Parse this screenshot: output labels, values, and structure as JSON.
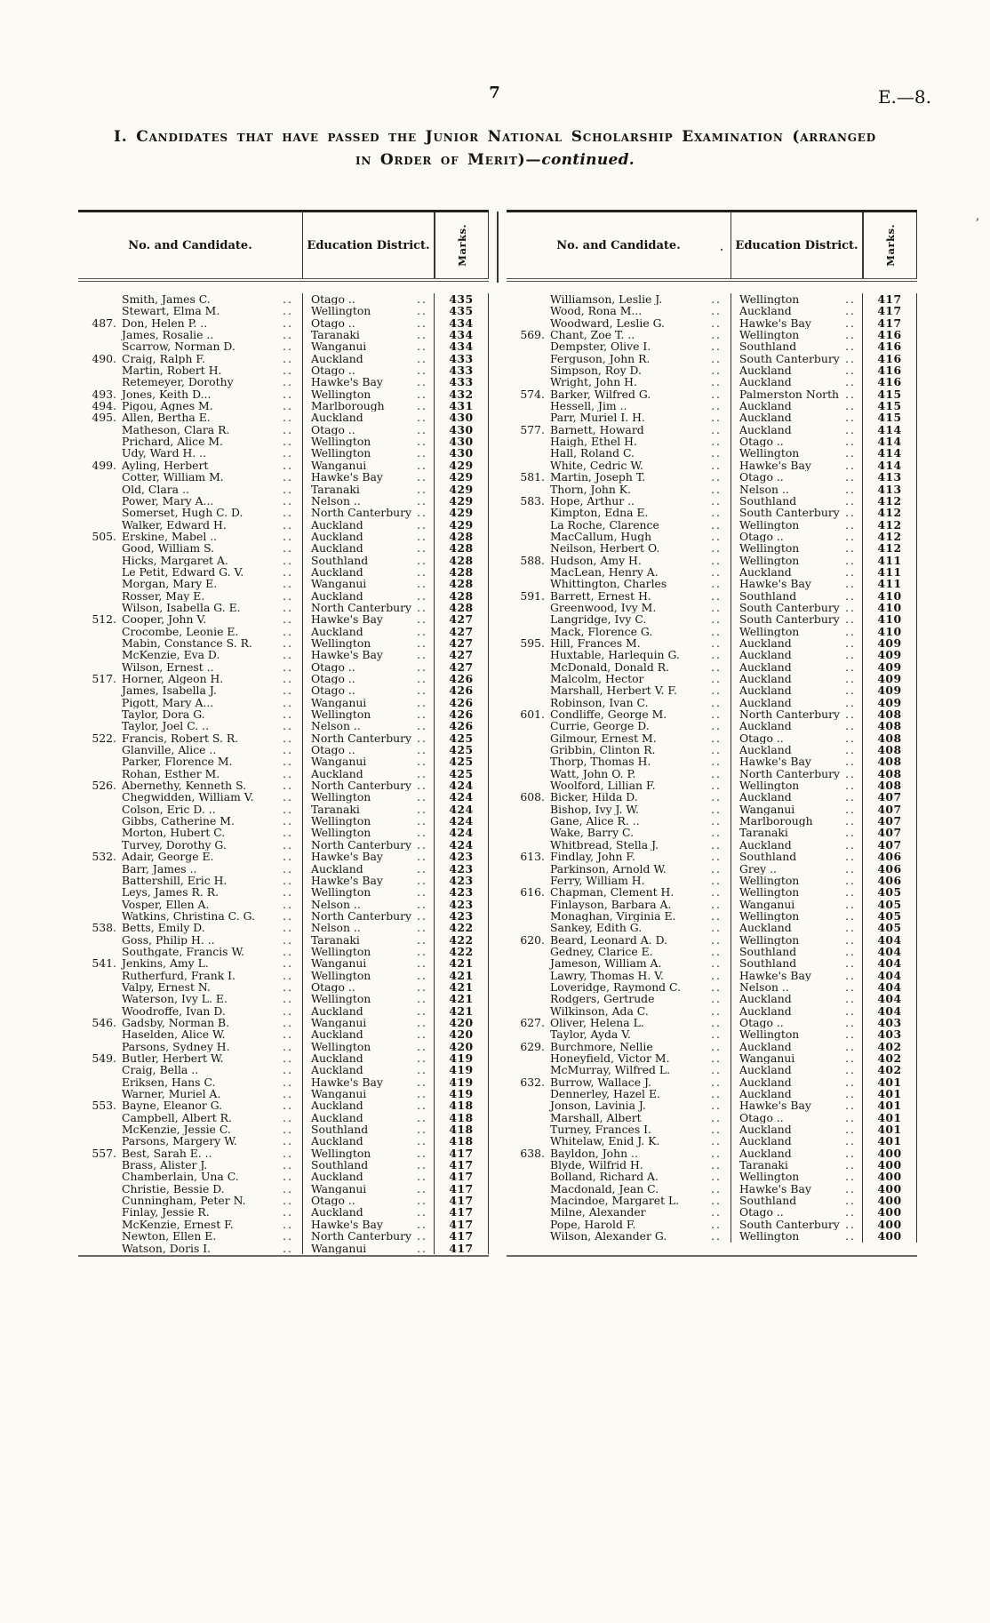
{
  "page": {
    "number": "7",
    "reference": "E.—8.",
    "noise_mark": "’"
  },
  "title": {
    "line1": "I. Candidates that have passed the Junior National Scholarship Examination (arranged",
    "line2_smallcaps": "in Order of Merit)—",
    "line2_italic": "continued."
  },
  "table": {
    "leader": "..",
    "stray_dot": ".",
    "headers": {
      "candidate": "No. and Candidate.",
      "district": "Education District.",
      "marks": "Marks."
    },
    "left_rows": [
      [
        "",
        "Smith, James C.",
        "Otago ..",
        "435"
      ],
      [
        "",
        "Stewart, Elma M.",
        "Wellington",
        "435"
      ],
      [
        "487.",
        "Don, Helen P. ..",
        "Otago ..",
        "434"
      ],
      [
        "",
        "James, Rosalie ..",
        "Taranaki",
        "434"
      ],
      [
        "",
        "Scarrow, Norman D.",
        "Wanganui",
        "434"
      ],
      [
        "490.",
        "Craig, Ralph F.",
        "Auckland",
        "433"
      ],
      [
        "",
        "Martin, Robert H.",
        "Otago ..",
        "433"
      ],
      [
        "",
        "Retemeyer, Dorothy",
        "Hawke's Bay",
        "433"
      ],
      [
        "493.",
        "Jones, Keith D...",
        "Wellington",
        "432"
      ],
      [
        "494.",
        "Pigou, Agnes M.",
        "Marlborough",
        "431"
      ],
      [
        "495.",
        "Allen, Bertha E.",
        "Auckland",
        "430"
      ],
      [
        "",
        "Matheson, Clara R.",
        "Otago ..",
        "430"
      ],
      [
        "",
        "Prichard, Alice M.",
        "Wellington",
        "430"
      ],
      [
        "",
        "Udy, Ward H. ..",
        "Wellington",
        "430"
      ],
      [
        "499.",
        "Ayling, Herbert",
        "Wanganui",
        "429"
      ],
      [
        "",
        "Cotter, William M.",
        "Hawke's Bay",
        "429"
      ],
      [
        "",
        "Old, Clara ..",
        "Taranaki",
        "429"
      ],
      [
        "",
        "Power, Mary A...",
        "Nelson ..",
        "429"
      ],
      [
        "",
        "Somerset, Hugh C. D.",
        "North Canterbury",
        "429"
      ],
      [
        "",
        "Walker, Edward H.",
        "Auckland",
        "429"
      ],
      [
        "505.",
        "Erskine, Mabel ..",
        "Auckland",
        "428"
      ],
      [
        "",
        "Good, William S.",
        "Auckland",
        "428"
      ],
      [
        "",
        "Hicks, Margaret A.",
        "Southland",
        "428"
      ],
      [
        "",
        "Le Petit, Edward G. V.",
        "Auckland",
        "428"
      ],
      [
        "",
        "Morgan, Mary E.",
        "Wanganui",
        "428"
      ],
      [
        "",
        "Rosser, May E.",
        "Auckland",
        "428"
      ],
      [
        "",
        "Wilson, Isabella G. E.",
        "North Canterbury",
        "428"
      ],
      [
        "512.",
        "Cooper, John V.",
        "Hawke's Bay",
        "427"
      ],
      [
        "",
        "Crocombe, Leonie E.",
        "Auckland",
        "427"
      ],
      [
        "",
        "Mabin, Constance S. R.",
        "Wellington",
        "427"
      ],
      [
        "",
        "McKenzie, Eva D.",
        "Hawke's Bay",
        "427"
      ],
      [
        "",
        "Wilson, Ernest ..",
        "Otago ..",
        "427"
      ],
      [
        "517.",
        "Horner, Algeon H.",
        "Otago ..",
        "426"
      ],
      [
        "",
        "James, Isabella J.",
        "Otago ..",
        "426"
      ],
      [
        "",
        "Pigott, Mary A...",
        "Wanganui",
        "426"
      ],
      [
        "",
        "Taylor, Dora G.",
        "Wellington",
        "426"
      ],
      [
        "",
        "Taylor, Joel C. ..",
        "Nelson ..",
        "426"
      ],
      [
        "522.",
        "Francis, Robert S. R.",
        "North Canterbury",
        "425"
      ],
      [
        "",
        "Glanville, Alice ..",
        "Otago ..",
        "425"
      ],
      [
        "",
        "Parker, Florence M.",
        "Wanganui",
        "425"
      ],
      [
        "",
        "Rohan, Esther M.",
        "Auckland",
        "425"
      ],
      [
        "526.",
        "Abernethy, Kenneth S.",
        "North Canterbury",
        "424"
      ],
      [
        "",
        "Chegwidden, William V.",
        "Wellington",
        "424"
      ],
      [
        "",
        "Colson, Eric D. ..",
        "Taranaki",
        "424"
      ],
      [
        "",
        "Gibbs, Catherine M.",
        "Wellington",
        "424"
      ],
      [
        "",
        "Morton, Hubert C.",
        "Wellington",
        "424"
      ],
      [
        "",
        "Turvey, Dorothy G.",
        "North Canterbury",
        "424"
      ],
      [
        "532.",
        "Adair, George E.",
        "Hawke's Bay",
        "423"
      ],
      [
        "",
        "Barr, James ..",
        "Auckland",
        "423"
      ],
      [
        "",
        "Battershill, Eric H.",
        "Hawke's Bay",
        "423"
      ],
      [
        "",
        "Leys, James R. R.",
        "Wellington",
        "423"
      ],
      [
        "",
        "Vosper, Ellen A.",
        "Nelson ..",
        "423"
      ],
      [
        "",
        "Watkins, Christina C. G.",
        "North Canterbury",
        "423"
      ],
      [
        "538.",
        "Betts, Emily D.",
        "Nelson ..",
        "422"
      ],
      [
        "",
        "Goss, Philip H. ..",
        "Taranaki",
        "422"
      ],
      [
        "",
        "Southgate, Francis W.",
        "Wellington",
        "422"
      ],
      [
        "541.",
        "Jenkins, Amy L.",
        "Wanganui",
        "421"
      ],
      [
        "",
        "Rutherfurd, Frank I.",
        "Wellington",
        "421"
      ],
      [
        "",
        "Valpy, Ernest N.",
        "Otago ..",
        "421"
      ],
      [
        "",
        "Waterson, Ivy L. E.",
        "Wellington",
        "421"
      ],
      [
        "",
        "Woodroffe, Ivan D.",
        "Auckland",
        "421"
      ],
      [
        "546.",
        "Gadsby, Norman B.",
        "Wanganui",
        "420"
      ],
      [
        "",
        "Haselden, Alice W.",
        "Auckland",
        "420"
      ],
      [
        "",
        "Parsons, Sydney H.",
        "Wellington",
        "420"
      ],
      [
        "549.",
        "Butler, Herbert W.",
        "Auckland",
        "419"
      ],
      [
        "",
        "Craig, Bella ..",
        "Auckland",
        "419"
      ],
      [
        "",
        "Eriksen, Hans C.",
        "Hawke's Bay",
        "419"
      ],
      [
        "",
        "Warner, Muriel A.",
        "Wanganui",
        "419"
      ],
      [
        "553.",
        "Bayne, Eleanor G.",
        "Auckland",
        "418"
      ],
      [
        "",
        "Campbell, Albert R.",
        "Auckland",
        "418"
      ],
      [
        "",
        "McKenzie, Jessie C.",
        "Southland",
        "418"
      ],
      [
        "",
        "Parsons, Margery W.",
        "Auckland",
        "418"
      ],
      [
        "557.",
        "Best, Sarah E. ..",
        "Wellington",
        "417"
      ],
      [
        "",
        "Brass, Alister J.",
        "Southland",
        "417"
      ],
      [
        "",
        "Chamberlain, Una C.",
        "Auckland",
        "417"
      ],
      [
        "",
        "Christie, Bessie D.",
        "Wanganui",
        "417"
      ],
      [
        "",
        "Cunningham, Peter N.",
        "Otago ..",
        "417"
      ],
      [
        "",
        "Finlay, Jessie R.",
        "Auckland",
        "417"
      ],
      [
        "",
        "McKenzie, Ernest F.",
        "Hawke's Bay",
        "417"
      ],
      [
        "",
        "Newton, Ellen E.",
        "North Canterbury",
        "417"
      ],
      [
        "",
        "Watson, Doris I.",
        "Wanganui",
        "417"
      ]
    ],
    "right_rows": [
      [
        "",
        "Williamson, Leslie J.",
        "Wellington",
        "417"
      ],
      [
        "",
        "Wood, Rona M...",
        "Auckland",
        "417"
      ],
      [
        "",
        "Woodward, Leslie G.",
        "Hawke's Bay",
        "417"
      ],
      [
        "569.",
        "Chant, Zoe T. ..",
        "Wellington",
        "416"
      ],
      [
        "",
        "Dempster, Olive I.",
        "Southland",
        "416"
      ],
      [
        "",
        "Ferguson, John R.",
        "South Canterbury",
        "416"
      ],
      [
        "",
        "Simpson, Roy D.",
        "Auckland",
        "416"
      ],
      [
        "",
        "Wright, John H.",
        "Auckland",
        "416"
      ],
      [
        "574.",
        "Barker, Wilfred G.",
        "Palmerston North",
        "415"
      ],
      [
        "",
        "Hessell, Jim ..",
        "Auckland",
        "415"
      ],
      [
        "",
        "Parr, Muriel I. H.",
        "Auckland",
        "415"
      ],
      [
        "577.",
        "Barnett, Howard",
        "Auckland",
        "414"
      ],
      [
        "",
        "Haigh, Ethel H.",
        "Otago ..",
        "414"
      ],
      [
        "",
        "Hall, Roland C.",
        "Wellington",
        "414"
      ],
      [
        "",
        "White, Cedric W.",
        "Hawke's Bay",
        "414"
      ],
      [
        "581.",
        "Martin, Joseph T.",
        "Otago ..",
        "413"
      ],
      [
        "",
        "Thorn, John K.",
        "Nelson ..",
        "413"
      ],
      [
        "583.",
        "Hope, Arthur ..",
        "Southland",
        "412"
      ],
      [
        "",
        "Kimpton, Edna E.",
        "South Canterbury",
        "412"
      ],
      [
        "",
        "La Roche, Clarence",
        "Wellington",
        "412"
      ],
      [
        "",
        "MacCallum, Hugh",
        "Otago ..",
        "412"
      ],
      [
        "",
        "Neilson, Herbert O.",
        "Wellington",
        "412"
      ],
      [
        "588.",
        "Hudson, Amy H.",
        "Wellington",
        "411"
      ],
      [
        "",
        "MacLean, Henry A.",
        "Auckland",
        "411"
      ],
      [
        "",
        "Whittington, Charles",
        "Hawke's Bay",
        "411"
      ],
      [
        "591.",
        "Barrett, Ernest H.",
        "Southland",
        "410"
      ],
      [
        "",
        "Greenwood, Ivy M.",
        "South Canterbury",
        "410"
      ],
      [
        "",
        "Langridge, Ivy C.",
        "South Canterbury",
        "410"
      ],
      [
        "",
        "Mack, Florence G.",
        "Wellington",
        "410"
      ],
      [
        "595.",
        "Hill, Frances M.",
        "Auckland",
        "409"
      ],
      [
        "",
        "Huxtable, Harlequin G.",
        "Auckland",
        "409"
      ],
      [
        "",
        "McDonald, Donald R.",
        "Auckland",
        "409"
      ],
      [
        "",
        "Malcolm, Hector",
        "Auckland",
        "409"
      ],
      [
        "",
        "Marshall, Herbert V. F.",
        "Auckland",
        "409"
      ],
      [
        "",
        "Robinson, Ivan C.",
        "Auckland",
        "409"
      ],
      [
        "601.",
        "Condliffe, George M.",
        "North Canterbury",
        "408"
      ],
      [
        "",
        "Currie, George D.",
        "Auckland",
        "408"
      ],
      [
        "",
        "Gilmour, Ernest M.",
        "Otago ..",
        "408"
      ],
      [
        "",
        "Gribbin, Clinton R.",
        "Auckland",
        "408"
      ],
      [
        "",
        "Thorp, Thomas H.",
        "Hawke's Bay",
        "408"
      ],
      [
        "",
        "Watt, John O. P.",
        "North Canterbury",
        "408"
      ],
      [
        "",
        "Woolford, Lillian F.",
        "Wellington",
        "408"
      ],
      [
        "608.",
        "Bicker, Hilda D.",
        "Auckland",
        "407"
      ],
      [
        "",
        "Bishop, Ivy J. W.",
        "Wanganui",
        "407"
      ],
      [
        "",
        "Gane, Alice R. ..",
        "Marlborough",
        "407"
      ],
      [
        "",
        "Wake, Barry C.",
        "Taranaki",
        "407"
      ],
      [
        "",
        "Whitbread, Stella J.",
        "Auckland",
        "407"
      ],
      [
        "613.",
        "Findlay, John F.",
        "Southland",
        "406"
      ],
      [
        "",
        "Parkinson, Arnold W.",
        "Grey ..",
        "406"
      ],
      [
        "",
        "Ferry, William H.",
        "Wellington",
        "406"
      ],
      [
        "616.",
        "Chapman, Clement H.",
        "Wellington",
        "405"
      ],
      [
        "",
        "Finlayson, Barbara A.",
        "Wanganui",
        "405"
      ],
      [
        "",
        "Monaghan, Virginia E.",
        "Wellington",
        "405"
      ],
      [
        "",
        "Sankey, Edith G.",
        "Auckland",
        "405"
      ],
      [
        "620.",
        "Beard, Leonard A. D.",
        "Wellington",
        "404"
      ],
      [
        "",
        "Gedney, Clarice E.",
        "Southland",
        "404"
      ],
      [
        "",
        "Jameson, William A.",
        "Southland",
        "404"
      ],
      [
        "",
        "Lawry, Thomas H. V.",
        "Hawke's Bay",
        "404"
      ],
      [
        "",
        "Loveridge, Raymond C.",
        "Nelson ..",
        "404"
      ],
      [
        "",
        "Rodgers, Gertrude",
        "Auckland",
        "404"
      ],
      [
        "",
        "Wilkinson, Ada C.",
        "Auckland",
        "404"
      ],
      [
        "627.",
        "Oliver, Helena L.",
        "Otago ..",
        "403"
      ],
      [
        "",
        "Taylor, Ayda V.",
        "Wellington",
        "403"
      ],
      [
        "629.",
        "Burchmore, Nellie",
        "Auckland",
        "402"
      ],
      [
        "",
        "Honeyfield, Victor M.",
        "Wanganui",
        "402"
      ],
      [
        "",
        "McMurray, Wilfred L.",
        "Auckland",
        "402"
      ],
      [
        "632.",
        "Burrow, Wallace J.",
        "Auckland",
        "401"
      ],
      [
        "",
        "Dennerley, Hazel E.",
        "Auckland",
        "401"
      ],
      [
        "",
        "Jonson, Lavinia J.",
        "Hawke's Bay",
        "401"
      ],
      [
        "",
        "Marshall, Albert",
        "Otago ..",
        "401"
      ],
      [
        "",
        "Turney, Frances I.",
        "Auckland",
        "401"
      ],
      [
        "",
        "Whitelaw, Enid J. K.",
        "Auckland",
        "401"
      ],
      [
        "638.",
        "Bayldon, John ..",
        "Auckland",
        "400"
      ],
      [
        "",
        "Blyde, Wilfrid H.",
        "Taranaki",
        "400"
      ],
      [
        "",
        "Bolland, Richard A.",
        "Wellington",
        "400"
      ],
      [
        "",
        "Macdonald, Jean C.",
        "Hawke's Bay",
        "400"
      ],
      [
        "",
        "Macindoe, Margaret L.",
        "Southland",
        "400"
      ],
      [
        "",
        "Milne, Alexander",
        "Otago ..",
        "400"
      ],
      [
        "",
        "Pope, Harold F.",
        "South Canterbury",
        "400"
      ],
      [
        "",
        "Wilson, Alexander G.",
        "Wellington",
        "400"
      ]
    ]
  }
}
